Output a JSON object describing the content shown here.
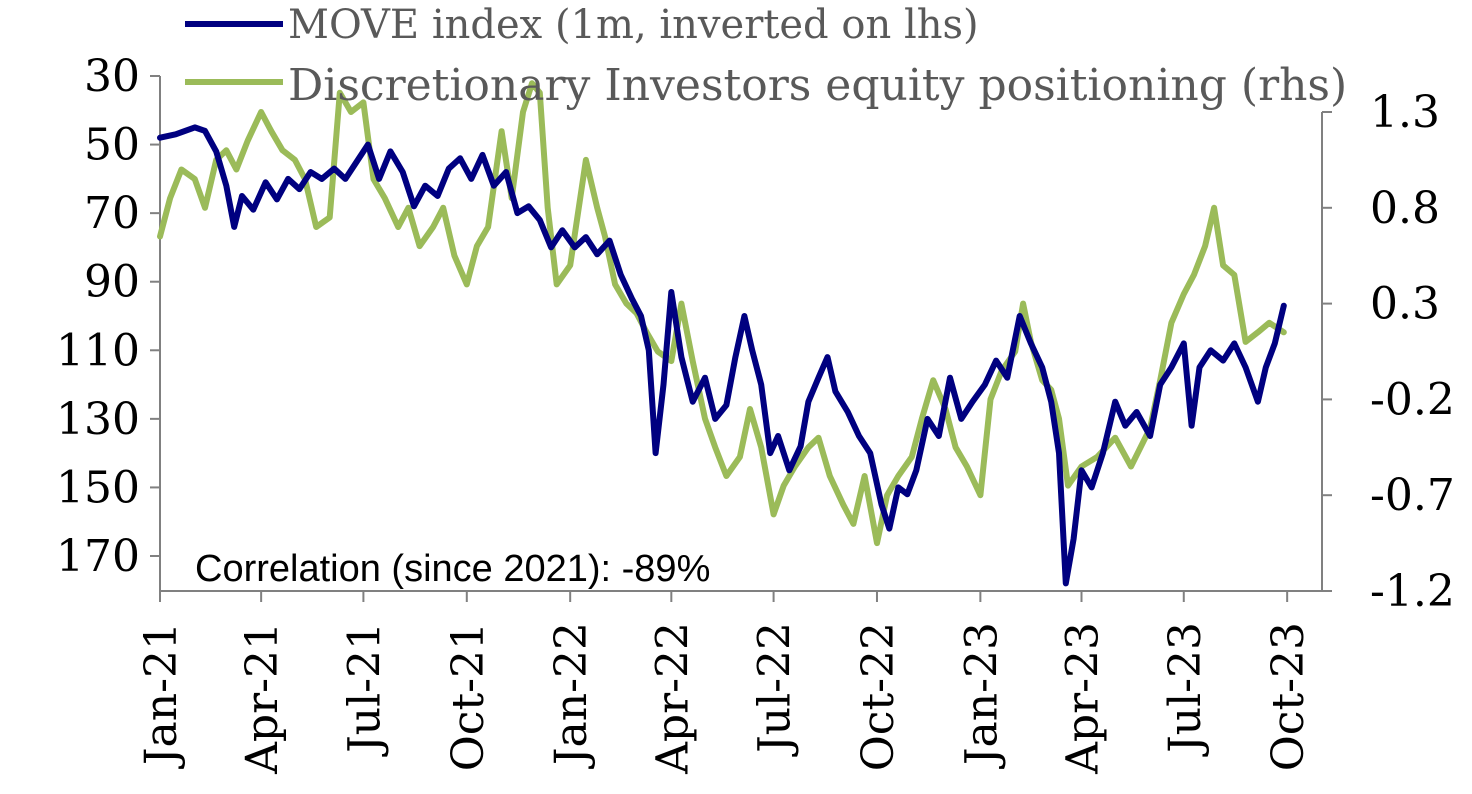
{
  "chart_data": {
    "type": "line",
    "title": "",
    "annotation": "Correlation (since 2021): -89%",
    "legend": {
      "placement": "top",
      "entries": [
        "MOVE index (1m, inverted on lhs)",
        "Discretionary Investors equity positioning (rhs)"
      ]
    },
    "colors": {
      "move": "#000080",
      "positioning": "#9bbb59",
      "axis": "#808080",
      "text": "#000000",
      "legend_text": "#595959"
    },
    "x_axis": {
      "type": "date",
      "range": [
        "2021-01-01",
        "2023-11-01"
      ],
      "ticks": [
        {
          "date": "2021-01-01",
          "label": "Jan-21"
        },
        {
          "date": "2021-04-01",
          "label": "Apr-21"
        },
        {
          "date": "2021-07-01",
          "label": "Jul-21"
        },
        {
          "date": "2021-10-01",
          "label": "Oct-21"
        },
        {
          "date": "2022-01-01",
          "label": "Jan-22"
        },
        {
          "date": "2022-04-01",
          "label": "Apr-22"
        },
        {
          "date": "2022-07-01",
          "label": "Jul-22"
        },
        {
          "date": "2022-10-01",
          "label": "Oct-22"
        },
        {
          "date": "2023-01-01",
          "label": "Jan-23"
        },
        {
          "date": "2023-04-01",
          "label": "Apr-23"
        },
        {
          "date": "2023-07-01",
          "label": "Jul-23"
        },
        {
          "date": "2023-10-01",
          "label": "Oct-23"
        }
      ]
    },
    "y_left": {
      "inverted": true,
      "range": [
        30,
        180
      ],
      "ticks": [
        30,
        50,
        70,
        90,
        110,
        130,
        150,
        170
      ],
      "tick_labels": [
        "30",
        "50",
        "70",
        "90",
        "110",
        "130",
        "150",
        "170"
      ]
    },
    "y_right": {
      "range": [
        -1.2,
        1.55
      ],
      "ticks": [
        1.3,
        0.8,
        0.3,
        -0.2,
        -0.7,
        -1.2
      ],
      "tick_labels": [
        "1.3",
        "0.8",
        "0.3",
        "-0.2",
        "-0.7",
        "-1.2"
      ]
    },
    "series": [
      {
        "name": "MOVE index (1m, inverted on lhs)",
        "axis": "left",
        "points": [
          [
            "2021-01-01",
            48
          ],
          [
            "2021-01-15",
            47
          ],
          [
            "2021-02-01",
            45
          ],
          [
            "2021-02-10",
            46
          ],
          [
            "2021-02-20",
            52
          ],
          [
            "2021-03-01",
            62
          ],
          [
            "2021-03-08",
            74
          ],
          [
            "2021-03-15",
            65
          ],
          [
            "2021-03-25",
            69
          ],
          [
            "2021-04-05",
            61
          ],
          [
            "2021-04-15",
            66
          ],
          [
            "2021-04-25",
            60
          ],
          [
            "2021-05-05",
            63
          ],
          [
            "2021-05-15",
            58
          ],
          [
            "2021-05-25",
            60
          ],
          [
            "2021-06-05",
            57
          ],
          [
            "2021-06-15",
            60
          ],
          [
            "2021-06-25",
            55
          ],
          [
            "2021-07-05",
            50
          ],
          [
            "2021-07-15",
            60
          ],
          [
            "2021-07-25",
            52
          ],
          [
            "2021-08-05",
            58
          ],
          [
            "2021-08-15",
            68
          ],
          [
            "2021-08-25",
            62
          ],
          [
            "2021-09-05",
            65
          ],
          [
            "2021-09-15",
            57
          ],
          [
            "2021-09-25",
            54
          ],
          [
            "2021-10-05",
            60
          ],
          [
            "2021-10-15",
            53
          ],
          [
            "2021-10-25",
            62
          ],
          [
            "2021-11-05",
            58
          ],
          [
            "2021-11-15",
            70
          ],
          [
            "2021-11-25",
            68
          ],
          [
            "2021-12-05",
            72
          ],
          [
            "2021-12-15",
            80
          ],
          [
            "2021-12-25",
            75
          ],
          [
            "2022-01-05",
            80
          ],
          [
            "2022-01-15",
            77
          ],
          [
            "2022-01-25",
            82
          ],
          [
            "2022-02-05",
            78
          ],
          [
            "2022-02-15",
            88
          ],
          [
            "2022-02-25",
            95
          ],
          [
            "2022-03-05",
            100
          ],
          [
            "2022-03-12",
            110
          ],
          [
            "2022-03-18",
            140
          ],
          [
            "2022-03-25",
            120
          ],
          [
            "2022-04-01",
            93
          ],
          [
            "2022-04-10",
            112
          ],
          [
            "2022-04-20",
            125
          ],
          [
            "2022-05-01",
            118
          ],
          [
            "2022-05-10",
            130
          ],
          [
            "2022-05-20",
            126
          ],
          [
            "2022-05-28",
            112
          ],
          [
            "2022-06-05",
            100
          ],
          [
            "2022-06-12",
            110
          ],
          [
            "2022-06-20",
            120
          ],
          [
            "2022-06-28",
            140
          ],
          [
            "2022-07-05",
            135
          ],
          [
            "2022-07-15",
            145
          ],
          [
            "2022-07-25",
            138
          ],
          [
            "2022-08-01",
            125
          ],
          [
            "2022-08-10",
            118
          ],
          [
            "2022-08-18",
            112
          ],
          [
            "2022-08-25",
            122
          ],
          [
            "2022-09-05",
            128
          ],
          [
            "2022-09-15",
            135
          ],
          [
            "2022-09-25",
            140
          ],
          [
            "2022-10-05",
            155
          ],
          [
            "2022-10-12",
            162
          ],
          [
            "2022-10-20",
            150
          ],
          [
            "2022-10-28",
            152
          ],
          [
            "2022-11-05",
            145
          ],
          [
            "2022-11-15",
            130
          ],
          [
            "2022-11-25",
            135
          ],
          [
            "2022-12-05",
            118
          ],
          [
            "2022-12-15",
            130
          ],
          [
            "2022-12-25",
            125
          ],
          [
            "2023-01-05",
            120
          ],
          [
            "2023-01-15",
            113
          ],
          [
            "2023-01-25",
            118
          ],
          [
            "2023-02-05",
            100
          ],
          [
            "2023-02-15",
            108
          ],
          [
            "2023-02-25",
            115
          ],
          [
            "2023-03-05",
            125
          ],
          [
            "2023-03-12",
            140
          ],
          [
            "2023-03-18",
            178
          ],
          [
            "2023-03-25",
            165
          ],
          [
            "2023-04-01",
            145
          ],
          [
            "2023-04-10",
            150
          ],
          [
            "2023-04-20",
            140
          ],
          [
            "2023-05-01",
            125
          ],
          [
            "2023-05-10",
            132
          ],
          [
            "2023-05-20",
            128
          ],
          [
            "2023-06-01",
            135
          ],
          [
            "2023-06-10",
            120
          ],
          [
            "2023-06-20",
            115
          ],
          [
            "2023-07-01",
            108
          ],
          [
            "2023-07-08",
            132
          ],
          [
            "2023-07-15",
            115
          ],
          [
            "2023-07-25",
            110
          ],
          [
            "2023-08-05",
            113
          ],
          [
            "2023-08-15",
            108
          ],
          [
            "2023-08-25",
            115
          ],
          [
            "2023-09-05",
            125
          ],
          [
            "2023-09-12",
            115
          ],
          [
            "2023-09-20",
            108
          ],
          [
            "2023-09-28",
            97
          ]
        ]
      },
      {
        "name": "Discretionary Investors equity positioning (rhs)",
        "axis": "right",
        "points": [
          [
            "2021-01-01",
            0.65
          ],
          [
            "2021-01-10",
            0.85
          ],
          [
            "2021-01-20",
            1.0
          ],
          [
            "2021-02-01",
            0.95
          ],
          [
            "2021-02-10",
            0.8
          ],
          [
            "2021-02-20",
            1.05
          ],
          [
            "2021-03-01",
            1.1
          ],
          [
            "2021-03-10",
            1.0
          ],
          [
            "2021-03-20",
            1.15
          ],
          [
            "2021-04-01",
            1.3
          ],
          [
            "2021-04-10",
            1.2
          ],
          [
            "2021-04-20",
            1.1
          ],
          [
            "2021-05-01",
            1.05
          ],
          [
            "2021-05-10",
            0.95
          ],
          [
            "2021-05-20",
            0.7
          ],
          [
            "2021-06-01",
            0.75
          ],
          [
            "2021-06-10",
            1.4
          ],
          [
            "2021-06-20",
            1.3
          ],
          [
            "2021-07-01",
            1.35
          ],
          [
            "2021-07-10",
            0.95
          ],
          [
            "2021-07-20",
            0.85
          ],
          [
            "2021-08-01",
            0.7
          ],
          [
            "2021-08-10",
            0.8
          ],
          [
            "2021-08-20",
            0.6
          ],
          [
            "2021-09-01",
            0.7
          ],
          [
            "2021-09-10",
            0.8
          ],
          [
            "2021-09-20",
            0.55
          ],
          [
            "2021-10-01",
            0.4
          ],
          [
            "2021-10-10",
            0.6
          ],
          [
            "2021-10-20",
            0.7
          ],
          [
            "2021-11-01",
            1.2
          ],
          [
            "2021-11-10",
            0.85
          ],
          [
            "2021-11-20",
            1.3
          ],
          [
            "2021-11-28",
            1.45
          ],
          [
            "2021-12-05",
            1.4
          ],
          [
            "2021-12-12",
            0.8
          ],
          [
            "2021-12-20",
            0.4
          ],
          [
            "2022-01-01",
            0.5
          ],
          [
            "2022-01-15",
            1.05
          ],
          [
            "2022-01-25",
            0.8
          ],
          [
            "2022-02-01",
            0.65
          ],
          [
            "2022-02-10",
            0.4
          ],
          [
            "2022-02-20",
            0.3
          ],
          [
            "2022-03-01",
            0.25
          ],
          [
            "2022-03-10",
            0.15
          ],
          [
            "2022-03-20",
            0.05
          ],
          [
            "2022-04-01",
            0.0
          ],
          [
            "2022-04-10",
            0.3
          ],
          [
            "2022-04-20",
            0.0
          ],
          [
            "2022-05-01",
            -0.3
          ],
          [
            "2022-05-10",
            -0.45
          ],
          [
            "2022-05-20",
            -0.6
          ],
          [
            "2022-06-01",
            -0.5
          ],
          [
            "2022-06-10",
            -0.25
          ],
          [
            "2022-06-20",
            -0.45
          ],
          [
            "2022-07-01",
            -0.8
          ],
          [
            "2022-07-10",
            -0.65
          ],
          [
            "2022-07-20",
            -0.55
          ],
          [
            "2022-08-01",
            -0.45
          ],
          [
            "2022-08-10",
            -0.4
          ],
          [
            "2022-08-20",
            -0.6
          ],
          [
            "2022-09-01",
            -0.75
          ],
          [
            "2022-09-10",
            -0.85
          ],
          [
            "2022-09-20",
            -0.6
          ],
          [
            "2022-10-01",
            -0.95
          ],
          [
            "2022-10-10",
            -0.7
          ],
          [
            "2022-10-20",
            -0.6
          ],
          [
            "2022-11-01",
            -0.5
          ],
          [
            "2022-11-10",
            -0.3
          ],
          [
            "2022-11-20",
            -0.1
          ],
          [
            "2022-12-01",
            -0.25
          ],
          [
            "2022-12-10",
            -0.45
          ],
          [
            "2022-12-20",
            -0.55
          ],
          [
            "2023-01-01",
            -0.7
          ],
          [
            "2023-01-10",
            -0.2
          ],
          [
            "2023-01-20",
            -0.05
          ],
          [
            "2023-02-01",
            0.05
          ],
          [
            "2023-02-08",
            0.3
          ],
          [
            "2023-02-15",
            0.1
          ],
          [
            "2023-02-25",
            -0.1
          ],
          [
            "2023-03-05",
            -0.15
          ],
          [
            "2023-03-12",
            -0.3
          ],
          [
            "2023-03-20",
            -0.65
          ],
          [
            "2023-04-01",
            -0.55
          ],
          [
            "2023-04-15",
            -0.5
          ],
          [
            "2023-05-01",
            -0.4
          ],
          [
            "2023-05-15",
            -0.55
          ],
          [
            "2023-06-01",
            -0.35
          ],
          [
            "2023-06-10",
            -0.1
          ],
          [
            "2023-06-20",
            0.2
          ],
          [
            "2023-07-01",
            0.35
          ],
          [
            "2023-07-10",
            0.45
          ],
          [
            "2023-07-20",
            0.6
          ],
          [
            "2023-07-28",
            0.8
          ],
          [
            "2023-08-05",
            0.5
          ],
          [
            "2023-08-15",
            0.45
          ],
          [
            "2023-08-25",
            0.1
          ],
          [
            "2023-09-05",
            0.15
          ],
          [
            "2023-09-15",
            0.2
          ],
          [
            "2023-09-28",
            0.15
          ]
        ]
      }
    ]
  }
}
